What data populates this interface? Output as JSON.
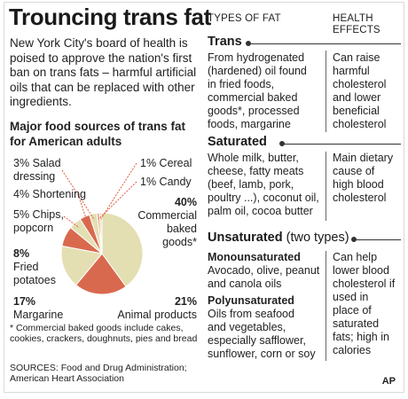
{
  "title": "Trouncing trans fat",
  "intro": "New York City's board of health is poised to approve the nation's first ban on trans fats – harmful artificial oils that can be replaced with other ingredients.",
  "colors": {
    "dark_red": "#d9694e",
    "light_red": "#ef9b80",
    "pale": "#e3dfb2",
    "outline": "#ffffff",
    "leader": "#e05a3e"
  },
  "chart_data": {
    "type": "pie",
    "title": "Major food sources of trans fat for American adults",
    "slices": [
      {
        "label": "Commercial baked goods*",
        "value": 40,
        "value_label": "40%",
        "color": "#e3dfb2"
      },
      {
        "label": "Animal products",
        "value": 21,
        "value_label": "21%",
        "color": "#d9694e"
      },
      {
        "label": "Margarine",
        "value": 17,
        "value_label": "17%",
        "color": "#e3dfb2"
      },
      {
        "label": "Fried potatoes",
        "value": 8,
        "value_label": "8%",
        "color": "#d9694e"
      },
      {
        "label": "Chips, popcorn",
        "value": 5,
        "value_label": "5%",
        "color": "#e3dfb2"
      },
      {
        "label": "Shortening",
        "value": 4,
        "value_label": "4%",
        "color": "#d9694e"
      },
      {
        "label": "Salad dressing",
        "value": 3,
        "value_label": "3%",
        "color": "#e3dfb2"
      },
      {
        "label": "Candy",
        "value": 1,
        "value_label": "1%",
        "color": "#ef9b80"
      },
      {
        "label": "Cereal",
        "value": 1,
        "value_label": "1%",
        "color": "#e3dfb2"
      }
    ],
    "labels": {
      "salad_pct": "3%",
      "salad_name": "Salad",
      "salad_name2": "dressing",
      "shortening": "4% Shortening",
      "chips_pct": "5% Chips,",
      "chips_name2": "popcorn",
      "fried_pct": "8%",
      "fried_name": "Fried",
      "fried_name2": "potatoes",
      "marg_pct": "17%",
      "marg_name": "Margarine",
      "cereal": "1% Cereal",
      "candy": "1% Candy",
      "baked_pct": "40%",
      "baked_name": "Commercial",
      "baked_name2": "baked",
      "baked_name3": "goods*",
      "animal_pct": "21%",
      "animal_name": "Animal products"
    }
  },
  "footnote": "* Commercial baked goods include cakes, cookies, crackers, doughnuts, pies and bread",
  "sources": "SOURCES: Food and Drug Administration; American Heart Association",
  "table": {
    "col1_header": "TYPES OF FAT",
    "col2_header_1": "HEALTH",
    "col2_header_2": "EFFECTS",
    "trans": {
      "title": "Trans",
      "l1": "From hydrogenated",
      "l2": "(hardened) oil found",
      "l3": "in fried foods,",
      "l4": "commercial baked",
      "l5": "goods*, processed",
      "l6": "foods, margarine",
      "e1": "Can raise",
      "e2": "harmful",
      "e3": "cholesterol",
      "e4": "and lower",
      "e5": "beneficial",
      "e6": "cholesterol"
    },
    "saturated": {
      "title": "Saturated",
      "l1": "Whole milk, butter,",
      "l2": "cheese, fatty meats",
      "l3": "(beef, lamb, pork,",
      "l4": "poultry ...), coconut oil,",
      "l5": "palm oil, cocoa butter",
      "e1": "Main dietary",
      "e2": "cause of",
      "e3": "high blood",
      "e4": "cholesterol"
    },
    "unsaturated": {
      "title": "Unsaturated",
      "subtitle": "(two types)",
      "mono_head": "Monounsaturated",
      "mono1": "Avocado, olive, peanut",
      "mono2": "and canola oils",
      "poly_head": "Polyunsaturated",
      "poly1": "Oils from seafood",
      "poly2": "and vegetables,",
      "poly3": "especially safflower,",
      "poly4": "sunflower, corn or soy",
      "e1": "Can help",
      "e2": "lower blood",
      "e3": "cholesterol if",
      "e4": "used in",
      "e5": "place of",
      "e6": "saturated",
      "e7": "fats; high in",
      "e8": "calories"
    }
  },
  "credit": "AP"
}
